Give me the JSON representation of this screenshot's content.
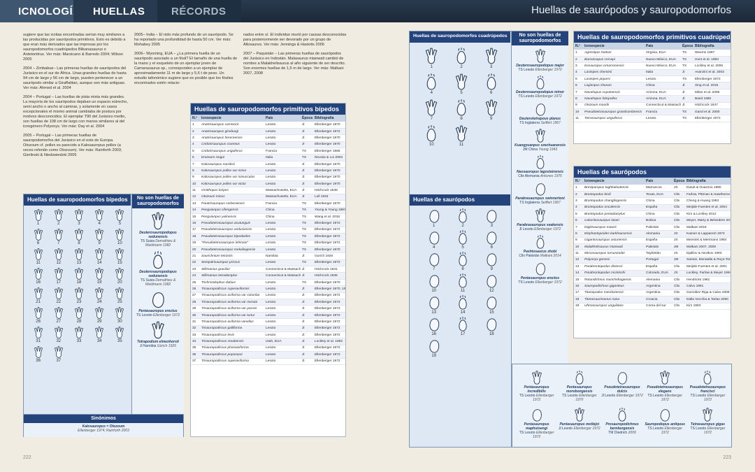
{
  "header": {
    "tabs": [
      "ICNOLOGÍA",
      "HUELLAS",
      "RÉCORDS"
    ],
    "page_title": "Huellas de saurópodos y sauropodomorfos"
  },
  "records": [
    "sugiere que las icnitas encontradas serían muy similares a las producidas por saurópodos primitivos. Esto es debido a que eran más derivados que las impresas por los sauropodomorfos cuadrúpedos Blikanasaurus o Antetonitrus. Ver más: Marsicano & Barredo 2004; Wilson 2005",
    "2004 – Zimbabue– Las primeras huellas de saurópodos del Jurásico en el sur de África. Unas grandes huellas de hasta 94 cm de largo y 56 cm de largo, pueden pertenecer a un saurópodo similar a Giraffatitan, aunque son más antiguas. Ver más: Ahmed et al. 2004",
    "2004 – Portugal – Las huellas de pista mixta más grandes. La mayoría de los saurópodos dejaban un espacio estrecho, semi ancho o ancho al caminar, y solamente en casos excepcionales el mismo animal cambiaba de postura por motivos desconocidos. El ejemplar T90 del Jurásico medio, son huellas de 108 cm de largo con manos similares al del icnogénero Polyonyx. Ver más: Day et al. 2004",
    "2005 – Portugal – Las primeras huellas de sauropodomorfos del Jurásico en el este de Europa. Otozoum cf. pollex es parecido a Kalosauropus pollex (a veces referido como Otozoum). Ver más: Rainforth 2003; Gierlinski & Niedzwiedzki 2005",
    "2005– India – El nido más profundo de un saurópodo. Se ha reportado una profundidad de hasta 50 cm. Ver más: Mohabey 2005",
    "2006– Wyoming, EUA – ¿La primera huella de un saurópodo asociado a un fósil? El tamaño de una huella de la mano y el esqueleto de un ejemplar joven de Camarasaurus sp., corresponden a un ejemplar de aproximadamente 11 m de largo y 5,6 t de peso. Un estudio tafonómico sugiere que es posible que los fósiles encontrados estén relacio-",
    "nados entre sí. El individuo murió por causas desconocidas para posteriormente ser devorado por un grupo de Allosaurus. Ver más: Jennings & Hasiotis 2006",
    "2007 – Paquistán – Las primeras huellas de saurópodos del Jurásico en Indostán. Malasaurus mianwali cambió de nombre a Malakhelisaurus al año siguiente de ser descrito. Son enormes huellas de 1,5 m de largo. Ver más: Malkani 2007, 2008"
  ],
  "cols": {
    "n": "N.º",
    "ichno": "Icnoespecie",
    "country": "País",
    "epoch": "Época",
    "biblio": "Bibliografía"
  },
  "bipedal_table": {
    "title": "Huellas de sauropodomorfos primitivos bípedos",
    "rows": [
      [
        "1",
        "Anatrisauropus carnivorit",
        "Lesoto",
        "Jl",
        "Ellenberger 1970"
      ],
      [
        "2",
        "Anatrisauropus ginsburgi",
        "Lesoto",
        "Jl",
        "Ellenberger 1972"
      ],
      [
        "3",
        "Anatrisauropus hereroensis",
        "Lesoto",
        "Jl",
        "Ellenberger 1970"
      ],
      [
        "4",
        "Cridotrisauropus cruentus",
        "Lesoto",
        "Jl",
        "Ellenberger 1970"
      ],
      [
        "5",
        "Cridotrisauropus unguiferus",
        "Francia",
        "TS",
        "Ellenberger 1965"
      ],
      [
        "6",
        "Erazoum singui",
        "Italia",
        "TS",
        "Nicosia & Loi 2003"
      ],
      [
        "7",
        "Kalosauropus masitisii",
        "Lesoto",
        "Jl",
        "Ellenberger 1970"
      ],
      [
        "8",
        "Kalosauropus pollex var minor",
        "Lesoto",
        "Jl",
        "Ellenberger 1970"
      ],
      [
        "9",
        "Kalosauropus pollex var minusculus",
        "Lesoto",
        "Jl",
        "Ellenberger 1970"
      ],
      [
        "10",
        "Kalosauropus pollex var victor",
        "Lesoto",
        "Jl",
        "Ellenberger 1970"
      ],
      [
        "11",
        "Ornithopus loripes",
        "Massachusetts, EUA",
        "Jl",
        "Hitchcock 1848"
      ],
      [
        "12",
        "Otozoum minus",
        "Massachusetts, EUA",
        "Jl",
        "Lull 1915"
      ],
      [
        "13",
        "Paratrisauropus corbesiensis",
        "Francia",
        "TS",
        "Ellenberger 1970"
      ],
      [
        "14",
        "Pengxianpus cifengensis",
        "China",
        "TS",
        "Young & Young 1987"
      ],
      [
        "15",
        "Pengxianpus yulinensis",
        "China",
        "TS",
        "Wang et al. 2016"
      ],
      [
        "16",
        "Pseudotetrasauropus acutunguis",
        "Lesoto",
        "TS",
        "Ellenberger 1972"
      ],
      [
        "17",
        "Pseudotetrasauropus andusiensis",
        "Lesoto",
        "TS",
        "Ellenberger 1972"
      ],
      [
        "18",
        "Pseudotetrasauropus bipedoides",
        "Lesoto",
        "TS",
        "Ellenberger 1972"
      ],
      [
        "19",
        "\"Pseudotetrasauropus lehmani\"",
        "Lesoto",
        "TS",
        "Ellenberger 1972"
      ],
      [
        "20",
        "Pseudotetrasauropus mekalingensis",
        "Lesoto",
        "TS",
        "Ellenberger 1970"
      ],
      [
        "21",
        "Saurichnium tetractis",
        "Namibia",
        "Jl",
        "Gurich 1926"
      ],
      [
        "22",
        "Senquitrisauropus priscus",
        "Lesoto",
        "TS",
        "Ellenberger 1972"
      ],
      [
        "23",
        "Sillimanius gracilior",
        "Connecticut & Massachusett, EUA",
        "Jl",
        "Hitchcock 1841"
      ],
      [
        "24",
        "Sillimanius tetradactylus",
        "Connecticut & Massachusett, EUA",
        "Jl",
        "Hitchcock 1836"
      ],
      [
        "25",
        "Trichristolophus dubius",
        "Lesoto",
        "TS",
        "Ellenberger 1970"
      ],
      [
        "26",
        "Trisauropodiscus superaviformis",
        "Lesoto",
        "Jl",
        "Ellenberger 1970, 1974"
      ],
      [
        "27",
        "Trisauropodiscus aviforma var columba",
        "Lesoto",
        "Jl",
        "Ellenberger 1972"
      ],
      [
        "28",
        "Trisauropodiscus aviforma var meruta",
        "Lesoto",
        "Jl",
        "Ellenberger 1972"
      ],
      [
        "29",
        "Trisauropodiscus aviforma var passer",
        "Lesoto",
        "Jl",
        "Ellenberger 1972"
      ],
      [
        "30",
        "Trisauropodiscus aviforma var turtur",
        "Lesoto",
        "Jl",
        "Ellenberger 1972"
      ],
      [
        "31",
        "Trisauropodiscus aviforma vanellus",
        "Lesoto",
        "Jl",
        "Ellenberger 1972"
      ],
      [
        "32",
        "Trisauropodiscus galliforma",
        "Lesoto",
        "Jl",
        "Ellenberger 1972"
      ],
      [
        "33",
        "Trisauropodiscus levis",
        "Lesoto",
        "Jl",
        "Ellenberger 1972"
      ],
      [
        "34",
        "Trisauropodiscus moabensis",
        "Utah, EUA",
        "Jl",
        "Lockley et al. 1992"
      ],
      [
        "35",
        "Trisauropodiscus phasianiforma",
        "Lesoto",
        "Jl",
        "Ellenberger 1972"
      ],
      [
        "36",
        "Trisauropodiscus popompoi",
        "Lesoto",
        "Jl",
        "Ellenberger 1972"
      ],
      [
        "37",
        "Trisauropodiscus superaviforma",
        "Lesoto",
        "Jl",
        "Ellenberger 1972"
      ]
    ]
  },
  "quadruped_table": {
    "title": "Huellas de sauropodomorfos primitivos cuadrúpedos",
    "rows": [
      [
        "1",
        "Agrestipus hottoni",
        "Virginia, EUA",
        "TS",
        "Weems 1987"
      ],
      [
        "2",
        "Barrancapus cresapi",
        "Nuevo México, EUA",
        "TS",
        "Hunt et al. 1993"
      ],
      [
        "3",
        "Eosauropus cimarronensis",
        "Nuevo México, EUA",
        "TS",
        "Lockley et al. 2006"
      ],
      [
        "4",
        "Lavinipes cheminii",
        "Italia",
        "Jl",
        "Avanzini et al. 2003"
      ],
      [
        "5",
        "Lavinipes jaquesi",
        "Lesoto",
        "TS",
        "Ellenberger 1972"
      ],
      [
        "6",
        "Liujianpus shunan",
        "China",
        "Jl",
        "Xing et al. 2015"
      ],
      [
        "7",
        "Navahopus coyoteensis",
        "Arizona, EUA",
        "Jl",
        "Milan et al. 2008"
      ],
      [
        "8",
        "Navahopus falcipollex",
        "Arizona, EUA",
        "Jl",
        "Baird 1980"
      ],
      [
        "9",
        "Otozoum moodii",
        "Connecticut & Massachusett, EUA",
        "Jl",
        "Hitchcock 1847"
      ],
      [
        "10",
        "Pseudotetrasauropus grandcombensis",
        "Francia",
        "TS",
        "Gand et al. 2000"
      ],
      [
        "11",
        "Tetrasauropus unguiferus",
        "Lesoto",
        "TS",
        "Ellenberger 1972"
      ]
    ]
  },
  "sauropod_table": {
    "title": "Huellas de saurópodos",
    "rows": [
      [
        "1",
        "Breviparopus taghbaloutensis",
        "Marruecos",
        "JS",
        "Dutuit & Ouazzou 1980"
      ],
      [
        "2",
        "Brontopodus birdi",
        "Texas, EUA",
        "Cltx",
        "Farlow, Pittman & Hawthorne 1989"
      ],
      [
        "3",
        "Brontopodus changlingensis",
        "China",
        "Cltx",
        "Cheng & Huang 1993"
      ],
      [
        "4",
        "Brontopodus oncalensis",
        "España",
        "Cltx",
        "Meijide-Fuentes et al. 2004"
      ],
      [
        "5",
        "Brontopodus pentadactylus",
        "China",
        "Cltx",
        "Kim & Lockley 2012"
      ],
      [
        "6",
        "Calorckosauripus lazari",
        "Bolivia",
        "Cltx",
        "Meyer, Marty & Belvedere 2018"
      ],
      [
        "7",
        "Digitisauropus mawrii",
        "Pakistán",
        "Cltx",
        "Malkani 2018"
      ],
      [
        "8",
        "Elephantopoides barkhausensis",
        "Alemania",
        "JS",
        "Kaever & Lapparent 1974"
      ],
      [
        "9",
        "Gigantosauropus asturiensis",
        "España",
        "JS",
        "Mensink & Mertmann 1984"
      ],
      [
        "10",
        "Malakhelisaurus mianwali",
        "Pakistán",
        "JM",
        "Malkani 2007, 2008"
      ],
      [
        "11",
        "Mirsosauropus tursunzadei",
        "Tayikistán",
        "JS",
        "Djalilov & Novikov 1993"
      ],
      [
        "12",
        "Polyonyx gomesi",
        "Portugal",
        "JM",
        "Santos, Moratalla & Royo-Torres 2009"
      ],
      [
        "13",
        "Parabrontopodus distercii",
        "España",
        "Cltx",
        "Meijide-Fuentes et al. 2001"
      ],
      [
        "14",
        "Parabrontopodus mcintoshi",
        "Colorado, EUA",
        "JS",
        "Lockley, Farlow & Meyer 1994"
      ],
      [
        "15",
        "Rotundichnus munchehagensis",
        "Alemania",
        "Cltx",
        "Hendricks 1981"
      ],
      [
        "16",
        "Sauropodichnus giganteus",
        "Argentina",
        "Cltx",
        "Calvo 1991"
      ],
      [
        "17",
        "Titanopodus mendozensis",
        "Argentina",
        "Cltx",
        "González Riga & Calvo 2009"
      ],
      [
        "18",
        "Titanosaurimanus nana",
        "Croacia",
        "Cltx",
        "Dalla Vecchia & Tarlao 2000"
      ],
      [
        "19",
        "Uhmasauropus unguilatus",
        "Corea del sur",
        "Cltx",
        "Kim 1993"
      ]
    ]
  },
  "bipedal_tracks": {
    "title": "Huellas de sauropodomorfos bípedos",
    "numbers": [
      "1",
      "2",
      "3",
      "4",
      "5",
      "6",
      "7",
      "8",
      "9",
      "10",
      "11",
      "12",
      "13",
      "14",
      "15",
      "16",
      "17",
      "18",
      "19",
      "20",
      "21",
      "22",
      "23",
      "24",
      "25",
      "26",
      "27",
      "28",
      "29",
      "30",
      "31",
      "32",
      "33",
      "34",
      "35",
      "36",
      "37"
    ],
    "side_title": "No son huellas de sauropodomorfos",
    "side": [
      {
        "name": "Deuterosauropodopus sedunensis",
        "where": "TS Suiza",
        "ref": "Demathieu & Weidmann 1982"
      },
      {
        "name": "Deuterosauropodopus sedunensis",
        "where": "TS Suiza",
        "ref": "Demathieu & Weidmann 1982"
      },
      {
        "name": "Pentasauropus erectus",
        "where": "TS Lesoto",
        "ref": "Ellenberger 1972"
      },
      {
        "name": "Tetrapodium elmenhorsti",
        "where": "Jl Namibia",
        "ref": "Gürich 1926"
      }
    ],
    "synonyms_title": "Sinónimos",
    "synonym": {
      "name": "Kalosauropus = Otozoum",
      "ref": "Ellenberger 1974; Rainforth 2003"
    }
  },
  "quad_tracks": {
    "title": "Huellas de sauropodomorfos cuadrúpedos",
    "numbers": [
      "1",
      "2",
      "3",
      "4",
      "5",
      "6",
      "7",
      "8",
      "9",
      "10",
      "11"
    ],
    "side_title": "No son huellas de sauropodomorfos",
    "side": [
      {
        "name": "Deuterosauropodopus major",
        "where": "TS Lesoto",
        "ref": "Ellenberger 1970"
      },
      {
        "name": "Deuterosauropodopus minor",
        "where": "TS Lesoto",
        "ref": "Ellenberger 1972"
      },
      {
        "name": "Deuterotetrapous planus",
        "where": "TS Inglaterra",
        "ref": "Seiffert 1967"
      },
      {
        "name": "Kuangyuanpus szechuanensis",
        "where": "JM China",
        "ref": "Young 1943"
      },
      {
        "name": "Neosauropus lagosteirensis",
        "where": "Cltx Alemania",
        "ref": "Antunes 1976"
      },
      {
        "name": "Parabrasauropus swinnertoni",
        "where": "TS Inglaterra",
        "ref": "Seiffert 1967"
      },
      {
        "name": "Parabrasauropus seakensis",
        "where": "Jl Lesoto",
        "ref": "Ellenberger 1972"
      },
      {
        "name": "Pashtosaurus zhobi",
        "where": "Cltx Pakistán",
        "ref": "Malkani 2014"
      },
      {
        "name": "Pentasauropus erectus",
        "where": "TS Lesoto",
        "ref": "Ellenberger 1972"
      }
    ]
  },
  "sauropod_tracks": {
    "title": "Huellas de saurópodos",
    "numbers": [
      "1",
      "2",
      "3",
      "4",
      "5",
      "6",
      "7",
      "8",
      "9",
      "10",
      "11",
      "12",
      "13",
      "14",
      "15",
      "16",
      "17",
      "18",
      "19"
    ]
  },
  "bottom_nonsauro": [
    {
      "name": "Pentasauropus incredibilis",
      "where": "TS Lesoto",
      "ref": "Ellenberger 1972"
    },
    {
      "name": "Pentasauropus morobongensis",
      "where": "TS Lesoto",
      "ref": "Ellenberger 1970"
    },
    {
      "name": "Pseudotetrasauropus dulcis",
      "where": "Jl Lesoto",
      "ref": "Ellenberger 1972"
    },
    {
      "name": "Pseudotetrasauropus elegans",
      "where": "TS Lesoto",
      "ref": "Ellenberger 1972"
    },
    {
      "name": "Pseudotetrasauropus francisci",
      "where": "TS Lesoto",
      "ref": "Ellenberger 1972"
    },
    {
      "name": "Pentasauropus maphutsengi",
      "where": "TS Lesoto",
      "ref": "Ellenberger 1972"
    },
    {
      "name": "Pentasauropus motlejoi",
      "where": "Jl Lesoto",
      "ref": "Ellenberger 1972"
    },
    {
      "name": "Prosauropodichnus bernburgensis",
      "where": "TM Diedrich",
      "ref": "2009"
    },
    {
      "name": "Sauropodopus antiquus",
      "where": "TS Lesoto",
      "ref": "Ellenberger 1972"
    },
    {
      "name": "Tetrasauropus gigas",
      "where": "TS Lesoto",
      "ref": "Ellenberger 1972"
    }
  ],
  "pages": {
    "left": "222",
    "right": "223"
  }
}
